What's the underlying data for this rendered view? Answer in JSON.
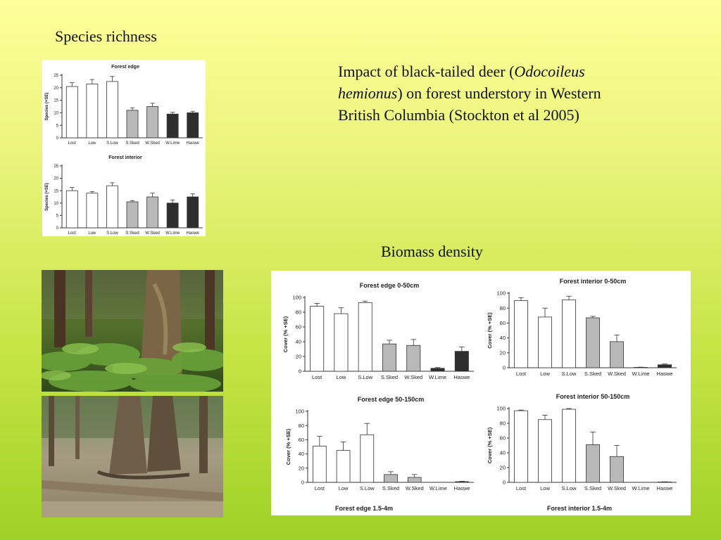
{
  "slide": {
    "heading_richness": "Species richness",
    "heading_biomass": "Biomass density",
    "description_before": "Impact of black-tailed deer (",
    "description_italic": "Odocoileus hemionus",
    "description_after": ") on forest understory in Western British Columbia (Stockton et al 2005)"
  },
  "colors": {
    "open": "#ffffff",
    "mid": "#b9b9b9",
    "dark": "#2e2e2e"
  },
  "chart_data": [
    {
      "type": "bar",
      "title": "Forest edge",
      "ylabel": "Species (+SE)",
      "categories": [
        "Lost",
        "Low",
        "S.Low",
        "S.Sked",
        "W.Sked",
        "W.Lime",
        "Haswe"
      ],
      "values": [
        20.5,
        21.5,
        22.5,
        11,
        12.5,
        9.5,
        10
      ],
      "errors": [
        1.5,
        1.8,
        2,
        1,
        1.3,
        0.7,
        0.6
      ],
      "shades": [
        "open",
        "open",
        "open",
        "mid",
        "mid",
        "dark",
        "dark"
      ],
      "ylim": [
        0,
        25
      ],
      "yticks": [
        0,
        5,
        10,
        15,
        20,
        25
      ]
    },
    {
      "type": "bar",
      "title": "Forest interior",
      "ylabel": "Species (+SE)",
      "categories": [
        "Lost",
        "Low",
        "S.Low",
        "S.Sked",
        "W.Sked",
        "W.Lime",
        "Haswe"
      ],
      "values": [
        15,
        14,
        17,
        10.5,
        12.5,
        10,
        12.5
      ],
      "errors": [
        1.3,
        0.6,
        1.2,
        0.5,
        1.5,
        1.2,
        1.2
      ],
      "shades": [
        "open",
        "open",
        "open",
        "mid",
        "mid",
        "dark",
        "dark"
      ],
      "ylim": [
        0,
        25
      ],
      "yticks": [
        0,
        5,
        10,
        15,
        20,
        25
      ]
    },
    {
      "type": "bar",
      "title": "Forest edge 0-50cm",
      "ylabel": "Cover (% +SE)",
      "categories": [
        "Lost",
        "Low",
        "S.Low",
        "S.Sked",
        "W.Sked",
        "W.Lime",
        "Haswe"
      ],
      "values": [
        88,
        78,
        93,
        37,
        35,
        4,
        27
      ],
      "errors": [
        4,
        8,
        2,
        5,
        8,
        1,
        6
      ],
      "shades": [
        "open",
        "open",
        "open",
        "mid",
        "mid",
        "dark",
        "dark"
      ],
      "ylim": [
        0,
        100
      ],
      "yticks": [
        0,
        20,
        40,
        60,
        80,
        100
      ]
    },
    {
      "type": "bar",
      "title": "Forest interior 0-50cm",
      "ylabel": "Cover (% +SE)",
      "categories": [
        "Lost",
        "Low",
        "S.Low",
        "S.Sked",
        "W.Sked",
        "W.Lime",
        "Haswe"
      ],
      "values": [
        90,
        68,
        91,
        67,
        35,
        0.5,
        4
      ],
      "errors": [
        4,
        12,
        5,
        2,
        9,
        0.3,
        1
      ],
      "shades": [
        "open",
        "open",
        "open",
        "mid",
        "mid",
        "dark",
        "dark"
      ],
      "ylim": [
        0,
        100
      ],
      "yticks": [
        0,
        20,
        40,
        60,
        80,
        100
      ]
    },
    {
      "type": "bar",
      "title": "Forest edge 50-150cm",
      "ylabel": "Cover (% +SE)",
      "categories": [
        "Lost",
        "Low",
        "S.Low",
        "S.Sked",
        "W.Sked",
        "W.Lime",
        "Haswe"
      ],
      "values": [
        51,
        45,
        67,
        11,
        7,
        0,
        1
      ],
      "errors": [
        14,
        12,
        16,
        4,
        4,
        0,
        0.5
      ],
      "shades": [
        "open",
        "open",
        "open",
        "mid",
        "mid",
        "dark",
        "dark"
      ],
      "ylim": [
        0,
        100
      ],
      "yticks": [
        0,
        20,
        40,
        60,
        80,
        100
      ]
    },
    {
      "type": "bar",
      "title": "Forest interior 50-150cm",
      "ylabel": "Cover (% +SE)",
      "categories": [
        "Lost",
        "Low",
        "S.Low",
        "S.Sked",
        "W.Sked",
        "W.Lime",
        "Haswe"
      ],
      "values": [
        97,
        85,
        99,
        51,
        35,
        0,
        0.5
      ],
      "errors": [
        1,
        6,
        1,
        17,
        15,
        0,
        0.3
      ],
      "shades": [
        "open",
        "open",
        "open",
        "mid",
        "mid",
        "dark",
        "dark"
      ],
      "ylim": [
        0,
        100
      ],
      "yticks": [
        0,
        20,
        40,
        60,
        80,
        100
      ]
    }
  ],
  "captions": [
    "Forest edge 1.5-4m",
    "Forest interior 1.5-4m"
  ]
}
